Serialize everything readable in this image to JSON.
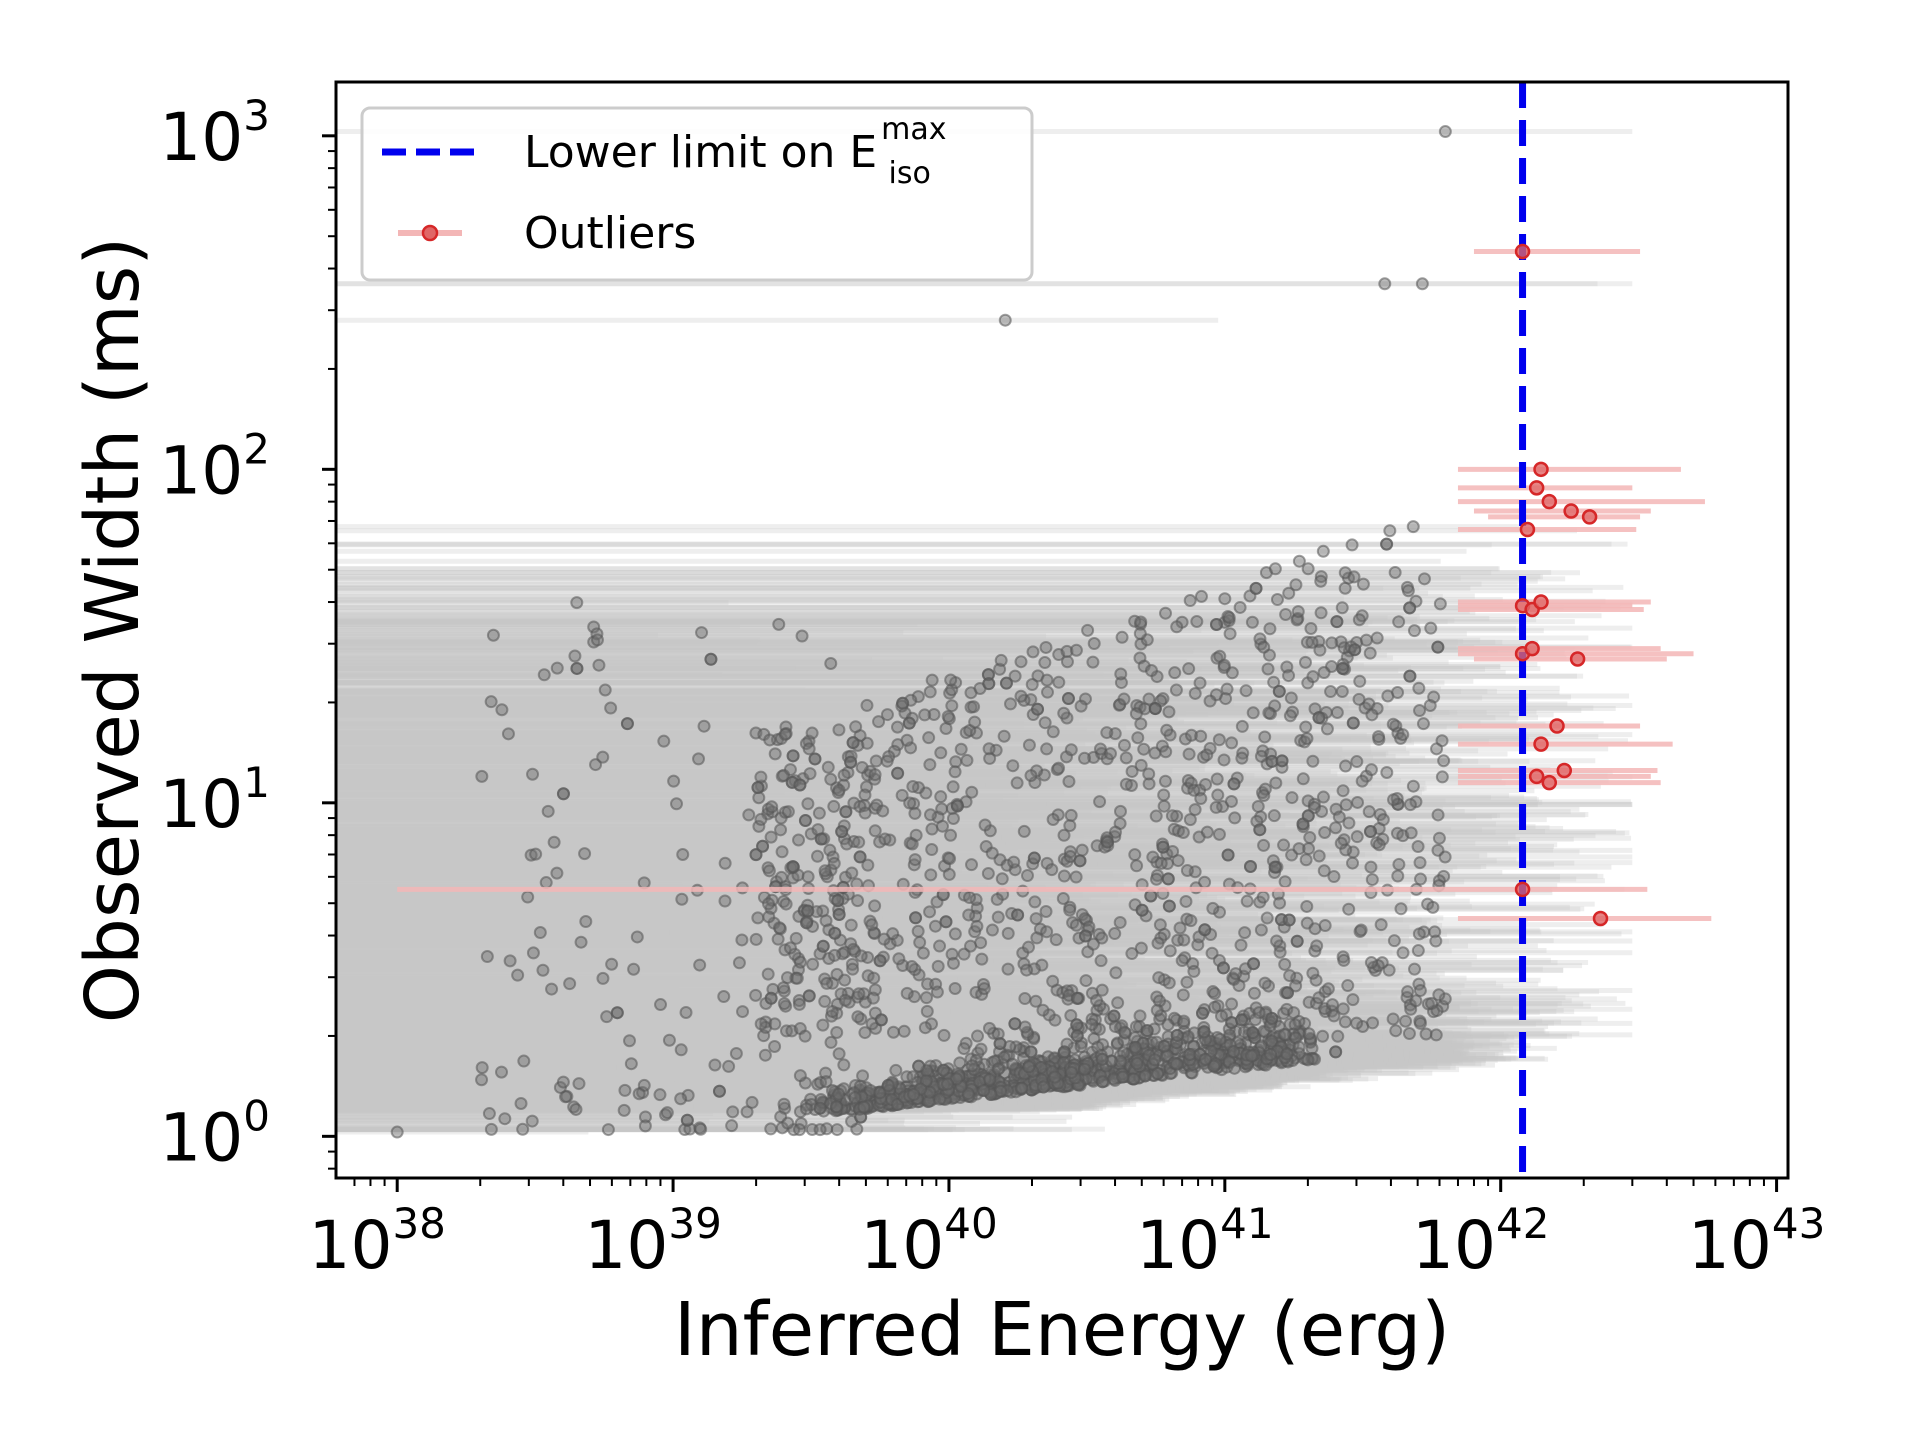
{
  "chart_data": {
    "type": "scatter",
    "xlabel": "Inferred Energy (erg)",
    "ylabel": "Observed Width (ms)",
    "x_scale": "log",
    "y_scale": "log",
    "xlim": [
      6e+37,
      1.1e+43
    ],
    "ylim": [
      0.75,
      1450
    ],
    "x_ticks": [
      {
        "base": "10",
        "exp": "38",
        "value": 1e+38
      },
      {
        "base": "10",
        "exp": "39",
        "value": 1e+39
      },
      {
        "base": "10",
        "exp": "40",
        "value": 1e+40
      },
      {
        "base": "10",
        "exp": "41",
        "value": 1e+41
      },
      {
        "base": "10",
        "exp": "42",
        "value": 1e+42
      },
      {
        "base": "10",
        "exp": "43",
        "value": 1e+43
      }
    ],
    "y_ticks": [
      {
        "base": "10",
        "exp": "0",
        "value": 1
      },
      {
        "base": "10",
        "exp": "1",
        "value": 10
      },
      {
        "base": "10",
        "exp": "2",
        "value": 100
      },
      {
        "base": "10",
        "exp": "3",
        "value": 1000
      }
    ],
    "legend": {
      "placement": "upper-left",
      "entries": [
        {
          "label": "Lower limit on E",
          "sup": "max",
          "sub": "iso",
          "style": "dashed-line",
          "color": "#0000ee"
        },
        {
          "label": "Outliers",
          "style": "marker-errorbar",
          "color": "#d62728"
        }
      ]
    },
    "vertical_line": {
      "x": 1.2e+42,
      "label": "Lower limit on E_iso^max",
      "color": "#0000ee",
      "style": "dashed"
    },
    "colors": {
      "points": "#6e6e6e",
      "errorbars": "#c8c8c8",
      "outliers": "#d62728",
      "outlier_errorbars": "#f3b6b6",
      "vline": "#0000ee"
    },
    "series": [
      {
        "name": "Outliers",
        "x": [
          1.2e+42,
          1.35e+42,
          1.4e+42,
          1.5e+42,
          1.25e+42,
          1.8e+42,
          2.1e+42,
          1.2e+42,
          1.3e+42,
          1.4e+42,
          1.2e+42,
          1.3e+42,
          1.9e+42,
          1.6e+42,
          1.4e+42,
          1.7e+42,
          1.35e+42,
          1.5e+42,
          1.2e+42,
          2.3e+42
        ],
        "y": [
          450,
          88,
          100,
          80,
          66,
          75,
          72,
          39,
          38,
          40,
          28,
          29,
          27,
          17,
          15,
          12.5,
          12,
          11.5,
          5.5,
          4.5
        ],
        "x_err_low": [
          8e+41,
          7e+41,
          7e+41,
          7e+41,
          7e+41,
          8e+41,
          9e+41,
          7e+41,
          7e+41,
          7e+41,
          7e+41,
          7e+41,
          8e+41,
          7e+41,
          7e+41,
          7e+41,
          7e+41,
          7e+41,
          1e+38,
          7e+41
        ],
        "x_err_high": [
          3.2e+42,
          3e+42,
          4.5e+42,
          5.5e+42,
          3.1e+42,
          3.5e+42,
          3.2e+42,
          3e+42,
          3.3e+42,
          3.5e+42,
          5e+42,
          3.8e+42,
          4e+42,
          3.2e+42,
          4.2e+42,
          3.7e+42,
          3.5e+42,
          3.8e+42,
          3.4e+42,
          5.8e+42
        ]
      }
    ]
  }
}
